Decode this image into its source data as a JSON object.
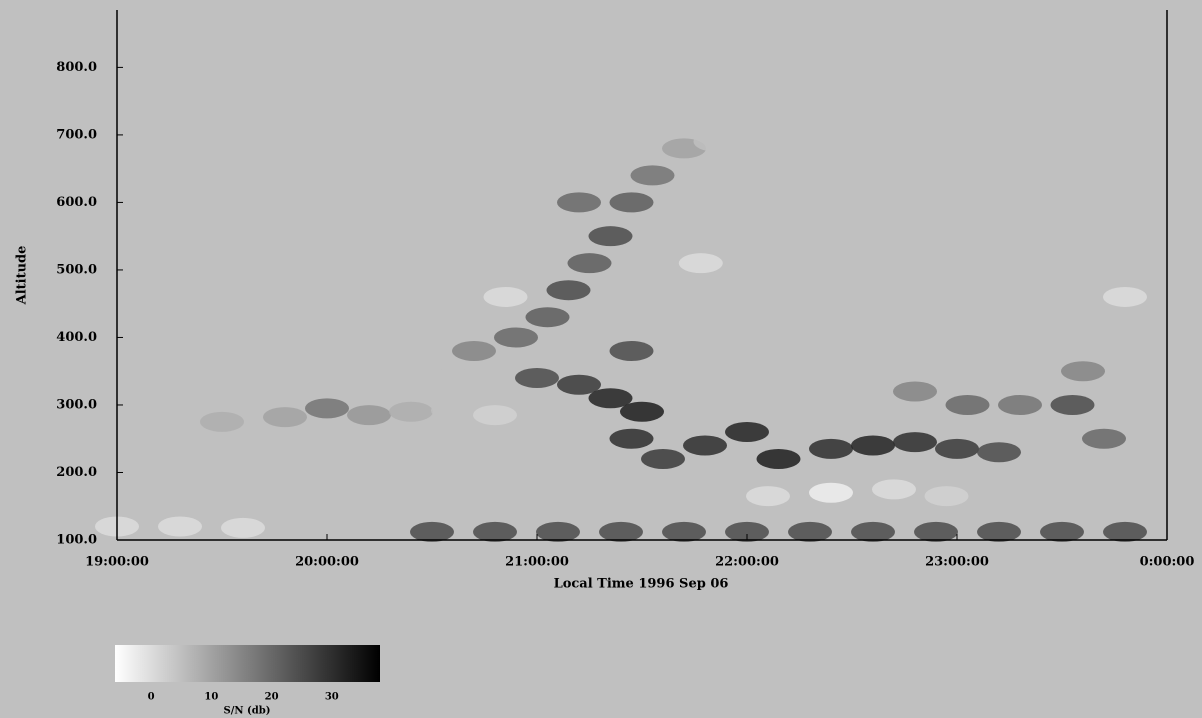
{
  "chart_data": {
    "type": "radar-echo",
    "xlabel": "Local Time   1996 Sep 06",
    "ylabel": "Altitude",
    "xlim": [
      19,
      24
    ],
    "ylim": [
      100,
      885
    ],
    "xticks": [
      {
        "value": 19,
        "label": "19:00:00"
      },
      {
        "value": 20,
        "label": "20:00:00"
      },
      {
        "value": 21,
        "label": "21:00:00"
      },
      {
        "value": 22,
        "label": "22:00:00"
      },
      {
        "value": 23,
        "label": "23:00:00"
      },
      {
        "value": 24,
        "label": "0:00:00"
      }
    ],
    "yticks": [
      {
        "value": 100,
        "label": "100.0"
      },
      {
        "value": 200,
        "label": "200.0"
      },
      {
        "value": 300,
        "label": "300.0"
      },
      {
        "value": 400,
        "label": "400.0"
      },
      {
        "value": 500,
        "label": "500.0"
      },
      {
        "value": 600,
        "label": "600.0"
      },
      {
        "value": 700,
        "label": "700.0"
      },
      {
        "value": 800,
        "label": "800.0"
      }
    ],
    "colorbar": {
      "label": "S/N (db)",
      "lim": [
        -6,
        38
      ],
      "ticks": [
        0,
        10,
        20,
        30
      ],
      "colors": [
        "#ffffff",
        "#000000"
      ]
    },
    "echoes": {
      "x": [
        19.0,
        19.3,
        19.6,
        20.5,
        20.8,
        21.1,
        21.4,
        21.7,
        22.0,
        22.3,
        22.6,
        22.9,
        23.2,
        23.5,
        23.8,
        19.2,
        19.5,
        19.8,
        20.0,
        20.2,
        20.4,
        20.6,
        20.8,
        20.7,
        20.9,
        21.05,
        21.15,
        21.25,
        21.35,
        21.2,
        21.45,
        21.55,
        21.7,
        21.85,
        20.6,
        20.85,
        21.0,
        21.2,
        21.35,
        21.5,
        21.45,
        21.6,
        21.45,
        21.8,
        22.0,
        22.15,
        22.4,
        22.6,
        22.8,
        23.0,
        23.2,
        22.8,
        23.05,
        23.3,
        22.1,
        22.4,
        22.7,
        22.95,
        23.55,
        23.6,
        23.7,
        23.8,
        21.78
      ],
      "y": [
        120,
        120,
        118,
        112,
        112,
        112,
        112,
        112,
        112,
        112,
        112,
        112,
        112,
        112,
        112,
        270,
        275,
        282,
        295,
        285,
        290,
        292,
        285,
        380,
        400,
        430,
        470,
        510,
        550,
        600,
        600,
        640,
        680,
        690,
        340,
        460,
        340,
        330,
        310,
        290,
        250,
        220,
        380,
        240,
        260,
        220,
        235,
        240,
        245,
        235,
        230,
        320,
        300,
        300,
        165,
        170,
        175,
        165,
        300,
        350,
        250,
        460,
        510
      ],
      "snr": [
        0,
        0,
        0,
        25,
        25,
        25,
        25,
        25,
        25,
        25,
        25,
        25,
        25,
        25,
        25,
        5,
        8,
        10,
        18,
        12,
        8,
        5,
        2,
        15,
        20,
        22,
        25,
        22,
        25,
        20,
        22,
        18,
        10,
        5,
        5,
        0,
        25,
        28,
        32,
        33,
        30,
        28,
        25,
        30,
        32,
        33,
        30,
        32,
        30,
        28,
        25,
        15,
        20,
        18,
        0,
        -3,
        0,
        2,
        25,
        15,
        20,
        0,
        0
      ]
    }
  }
}
